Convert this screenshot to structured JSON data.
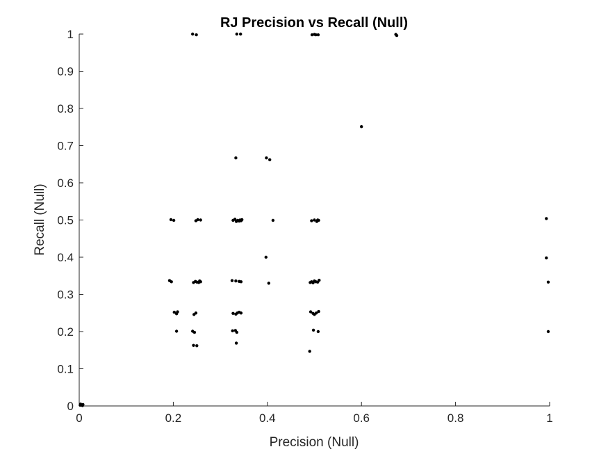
{
  "chart_data": {
    "type": "scatter",
    "title": "RJ Precision vs Recall (Null)",
    "xlabel": "Precision (Null)",
    "ylabel": "Recall (Null)",
    "xlim": [
      0,
      1
    ],
    "ylim": [
      0,
      1
    ],
    "x_ticks": [
      0,
      0.2,
      0.4,
      0.6,
      0.8,
      1
    ],
    "x_tick_labels": [
      "0",
      "0.2",
      "0.4",
      "0.6",
      "0.8",
      "1"
    ],
    "y_ticks": [
      0,
      0.1,
      0.2,
      0.3,
      0.4,
      0.5,
      0.6,
      0.7,
      0.8,
      0.9,
      1
    ],
    "y_tick_labels": [
      "0",
      "0.1",
      "0.2",
      "0.3",
      "0.4",
      "0.5",
      "0.6",
      "0.7",
      "0.8",
      "0.9",
      "1"
    ],
    "grid": false,
    "marker_color": "#000000",
    "points": [
      [
        0.002,
        0.002
      ],
      [
        0.004,
        0.003
      ],
      [
        0.006,
        0.002
      ],
      [
        0.008,
        0.004
      ],
      [
        0.003,
        0.005
      ],
      [
        0.007,
        0.001
      ],
      [
        0.241,
        1.0
      ],
      [
        0.249,
        0.998
      ],
      [
        0.335,
        1.0
      ],
      [
        0.343,
        1.0
      ],
      [
        0.495,
        0.998
      ],
      [
        0.5,
        0.999
      ],
      [
        0.503,
        0.998
      ],
      [
        0.508,
        0.998
      ],
      [
        0.673,
        0.999
      ],
      [
        0.675,
        0.996
      ],
      [
        0.6,
        0.751
      ],
      [
        0.333,
        0.667
      ],
      [
        0.398,
        0.667
      ],
      [
        0.405,
        0.662
      ],
      [
        0.195,
        0.501
      ],
      [
        0.201,
        0.499
      ],
      [
        0.248,
        0.498
      ],
      [
        0.252,
        0.501
      ],
      [
        0.258,
        0.5
      ],
      [
        0.327,
        0.499
      ],
      [
        0.331,
        0.502
      ],
      [
        0.334,
        0.496
      ],
      [
        0.337,
        0.499
      ],
      [
        0.34,
        0.497
      ],
      [
        0.342,
        0.5
      ],
      [
        0.344,
        0.498
      ],
      [
        0.346,
        0.501
      ],
      [
        0.412,
        0.499
      ],
      [
        0.494,
        0.498
      ],
      [
        0.5,
        0.5
      ],
      [
        0.505,
        0.496
      ],
      [
        0.507,
        0.5
      ],
      [
        0.509,
        0.499
      ],
      [
        0.993,
        0.504
      ],
      [
        0.397,
        0.4
      ],
      [
        0.993,
        0.398
      ],
      [
        0.192,
        0.337
      ],
      [
        0.196,
        0.334
      ],
      [
        0.243,
        0.332
      ],
      [
        0.247,
        0.335
      ],
      [
        0.25,
        0.333
      ],
      [
        0.254,
        0.332
      ],
      [
        0.256,
        0.336
      ],
      [
        0.258,
        0.334
      ],
      [
        0.325,
        0.337
      ],
      [
        0.333,
        0.336
      ],
      [
        0.34,
        0.335
      ],
      [
        0.344,
        0.334
      ],
      [
        0.403,
        0.33
      ],
      [
        0.491,
        0.332
      ],
      [
        0.494,
        0.334
      ],
      [
        0.497,
        0.331
      ],
      [
        0.5,
        0.336
      ],
      [
        0.503,
        0.334
      ],
      [
        0.507,
        0.333
      ],
      [
        0.51,
        0.338
      ],
      [
        0.997,
        0.333
      ],
      [
        0.202,
        0.252
      ],
      [
        0.207,
        0.248
      ],
      [
        0.209,
        0.253
      ],
      [
        0.244,
        0.246
      ],
      [
        0.248,
        0.25
      ],
      [
        0.327,
        0.249
      ],
      [
        0.333,
        0.247
      ],
      [
        0.336,
        0.25
      ],
      [
        0.34,
        0.252
      ],
      [
        0.344,
        0.25
      ],
      [
        0.492,
        0.253
      ],
      [
        0.497,
        0.249
      ],
      [
        0.5,
        0.246
      ],
      [
        0.504,
        0.25
      ],
      [
        0.509,
        0.254
      ],
      [
        0.207,
        0.201
      ],
      [
        0.241,
        0.201
      ],
      [
        0.245,
        0.198
      ],
      [
        0.326,
        0.202
      ],
      [
        0.332,
        0.203
      ],
      [
        0.335,
        0.198
      ],
      [
        0.498,
        0.204
      ],
      [
        0.508,
        0.2
      ],
      [
        0.997,
        0.2
      ],
      [
        0.243,
        0.163
      ],
      [
        0.25,
        0.162
      ],
      [
        0.334,
        0.169
      ],
      [
        0.49,
        0.147
      ]
    ]
  }
}
